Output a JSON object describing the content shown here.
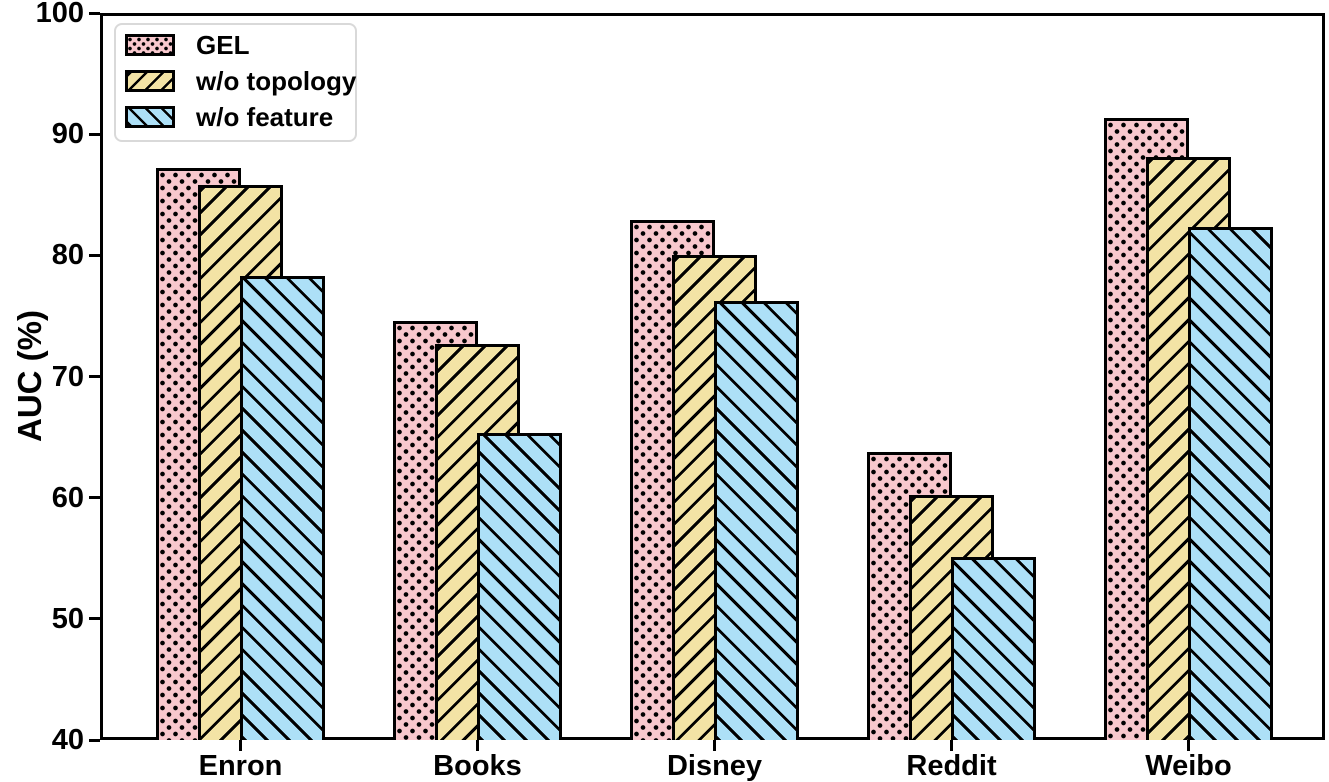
{
  "chart_data": {
    "type": "bar",
    "title": "",
    "xlabel": "",
    "ylabel": "AUC (%)",
    "ylim": [
      40,
      100
    ],
    "yticks": [
      40,
      50,
      60,
      70,
      80,
      90,
      100
    ],
    "grid": false,
    "legend_position": "upper left",
    "bar_style": "overlapping-offset",
    "edge_color": "#000000",
    "categories": [
      "Enron",
      "Books",
      "Disney",
      "Reddit",
      "Weibo"
    ],
    "series": [
      {
        "name": "GEL",
        "hatch": "dots",
        "color": "#f8c8cd",
        "values": [
          87.2,
          74.6,
          82.9,
          63.8,
          91.3
        ]
      },
      {
        "name": "w/o topology",
        "hatch": "slash",
        "color": "#f3e3a5",
        "values": [
          85.8,
          72.7,
          80.0,
          60.2,
          88.1
        ]
      },
      {
        "name": "w/o feature",
        "hatch": "backslash",
        "color": "#ade0f7",
        "values": [
          78.3,
          65.3,
          76.2,
          55.1,
          82.3
        ]
      }
    ]
  }
}
